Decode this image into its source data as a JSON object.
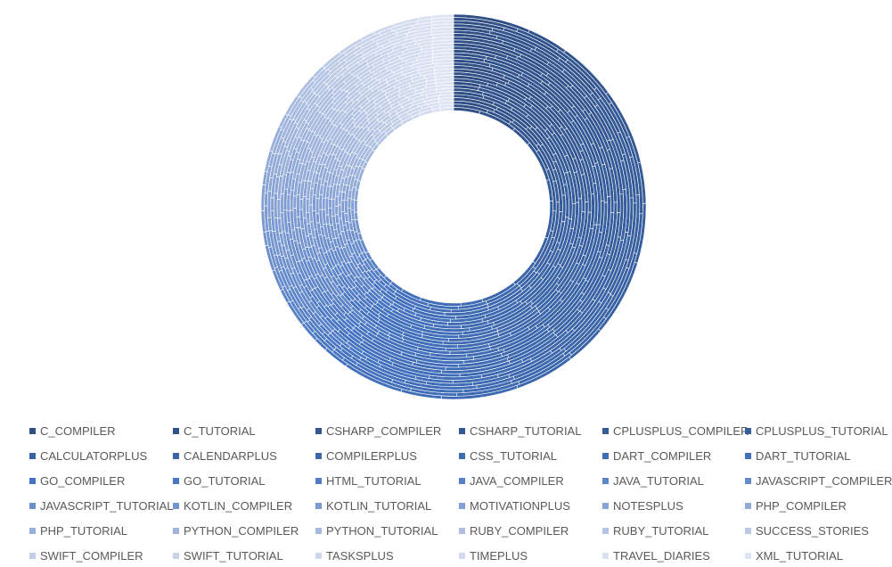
{
  "chart_data": {
    "type": "doughnut",
    "title": "",
    "legend_position": "bottom",
    "ring_count": 30,
    "series": [
      {
        "name": "C_COMPILER",
        "color": "#2F4F86"
      },
      {
        "name": "C_TUTORIAL",
        "color": "#30528B"
      },
      {
        "name": "CSHARP_COMPILER",
        "color": "#32558F"
      },
      {
        "name": "CSHARP_TUTORIAL",
        "color": "#345894"
      },
      {
        "name": "CPLUSPLUS_COMPILER",
        "color": "#355B99"
      },
      {
        "name": "CPLUSPLUS_TUTORIAL",
        "color": "#375E9E"
      },
      {
        "name": "CALCULATORPLUS",
        "color": "#3961A3"
      },
      {
        "name": "CALENDARPLUS",
        "color": "#3A64A8"
      },
      {
        "name": "COMPILERPLUS",
        "color": "#3C67AD"
      },
      {
        "name": "CSS_TUTORIAL",
        "color": "#3E6AB2"
      },
      {
        "name": "DART_COMPILER",
        "color": "#406DB7"
      },
      {
        "name": "DART_TUTORIAL",
        "color": "#4270BC"
      },
      {
        "name": "GO_COMPILER",
        "color": "#4473C1"
      },
      {
        "name": "GO_TUTORIAL",
        "color": "#4A77C3"
      },
      {
        "name": "HTML_TUTORIAL",
        "color": "#517CC5"
      },
      {
        "name": "JAVA_COMPILER",
        "color": "#5881C7"
      },
      {
        "name": "JAVA_TUTORIAL",
        "color": "#5F86C9"
      },
      {
        "name": "JAVASCRIPT_COMPILER",
        "color": "#668BCB"
      },
      {
        "name": "JAVASCRIPT_TUTORIAL",
        "color": "#6D90CD"
      },
      {
        "name": "KOTLIN_COMPILER",
        "color": "#7595CF"
      },
      {
        "name": "KOTLIN_TUTORIAL",
        "color": "#7C9AD1"
      },
      {
        "name": "MOTIVATIONPLUS",
        "color": "#839FD3"
      },
      {
        "name": "NOTESPLUS",
        "color": "#8AA4D6"
      },
      {
        "name": "PHP_COMPILER",
        "color": "#91AAD8"
      },
      {
        "name": "PHP_TUTORIAL",
        "color": "#98AFDA"
      },
      {
        "name": "PYTHON_COMPILER",
        "color": "#9FB4DC"
      },
      {
        "name": "PYTHON_TUTORIAL",
        "color": "#A6B9DE"
      },
      {
        "name": "RUBY_COMPILER",
        "color": "#ADBEE1"
      },
      {
        "name": "RUBY_TUTORIAL",
        "color": "#B4C3E3"
      },
      {
        "name": "SUCCESS_STORIES",
        "color": "#BBC9E5"
      },
      {
        "name": "SWIFT_COMPILER",
        "color": "#C2CEE8"
      },
      {
        "name": "SWIFT_TUTORIAL",
        "color": "#C8D3EA"
      },
      {
        "name": "TASKSPLUS",
        "color": "#CED8ED"
      },
      {
        "name": "TIMEPLUS",
        "color": "#D3DCEF"
      },
      {
        "name": "TRAVEL_DIARIES",
        "color": "#D8E0F1"
      },
      {
        "name": "XML_TUTORIAL",
        "color": "#DDE4F3"
      }
    ]
  }
}
